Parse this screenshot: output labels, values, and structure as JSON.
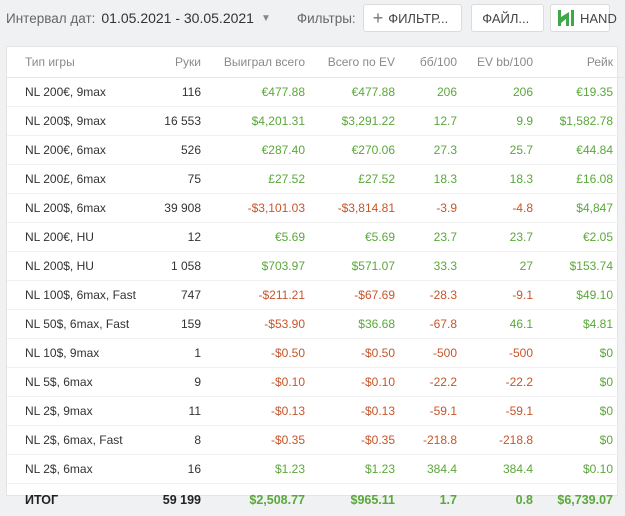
{
  "topbar": {
    "date_label": "Интервал дат:",
    "date_range": "01.05.2021 - 30.05.2021",
    "filters_label": "Фильтры:",
    "filter_button": "ФИЛЬТР...",
    "file_button": "ФАЙЛ...",
    "hand_button": "HAND"
  },
  "colors": {
    "positive": "#5aa83a",
    "negative": "#c8552b",
    "logo": "#3fa84a"
  },
  "table": {
    "headers": [
      "Тип игры",
      "Руки",
      "Выиграл всего",
      "Всего по EV",
      "бб/100",
      "EV bb/100",
      "Рейк"
    ],
    "rows": [
      {
        "game": "NL 200€, 9max",
        "hands": "116",
        "won": "€477.88",
        "ev": "€477.88",
        "bb": "206",
        "evbb": "206",
        "rake": "€19.35"
      },
      {
        "game": "NL 200$, 9max",
        "hands": "16 553",
        "won": "$4,201.31",
        "ev": "$3,291.22",
        "bb": "12.7",
        "evbb": "9.9",
        "rake": "$1,582.78"
      },
      {
        "game": "NL 200€, 6max",
        "hands": "526",
        "won": "€287.40",
        "ev": "€270.06",
        "bb": "27.3",
        "evbb": "25.7",
        "rake": "€44.84"
      },
      {
        "game": "NL 200£, 6max",
        "hands": "75",
        "won": "£27.52",
        "ev": "£27.52",
        "bb": "18.3",
        "evbb": "18.3",
        "rake": "£16.08"
      },
      {
        "game": "NL 200$, 6max",
        "hands": "39 908",
        "won": "-$3,101.03",
        "ev": "-$3,814.81",
        "bb": "-3.9",
        "evbb": "-4.8",
        "rake": "$4,847"
      },
      {
        "game": "NL 200€, HU",
        "hands": "12",
        "won": "€5.69",
        "ev": "€5.69",
        "bb": "23.7",
        "evbb": "23.7",
        "rake": "€2.05"
      },
      {
        "game": "NL 200$, HU",
        "hands": "1 058",
        "won": "$703.97",
        "ev": "$571.07",
        "bb": "33.3",
        "evbb": "27",
        "rake": "$153.74"
      },
      {
        "game": "NL 100$, 6max, Fast",
        "hands": "747",
        "won": "-$211.21",
        "ev": "-$67.69",
        "bb": "-28.3",
        "evbb": "-9.1",
        "rake": "$49.10"
      },
      {
        "game": "NL 50$, 6max, Fast",
        "hands": "159",
        "won": "-$53.90",
        "ev": "$36.68",
        "bb": "-67.8",
        "evbb": "46.1",
        "rake": "$4.81"
      },
      {
        "game": "NL 10$, 9max",
        "hands": "1",
        "won": "-$0.50",
        "ev": "-$0.50",
        "bb": "-500",
        "evbb": "-500",
        "rake": "$0"
      },
      {
        "game": "NL 5$, 6max",
        "hands": "9",
        "won": "-$0.10",
        "ev": "-$0.10",
        "bb": "-22.2",
        "evbb": "-22.2",
        "rake": "$0"
      },
      {
        "game": "NL 2$, 9max",
        "hands": "11",
        "won": "-$0.13",
        "ev": "-$0.13",
        "bb": "-59.1",
        "evbb": "-59.1",
        "rake": "$0"
      },
      {
        "game": "NL 2$, 6max, Fast",
        "hands": "8",
        "won": "-$0.35",
        "ev": "-$0.35",
        "bb": "-218.8",
        "evbb": "-218.8",
        "rake": "$0"
      },
      {
        "game": "NL 2$, 6max",
        "hands": "16",
        "won": "$1.23",
        "ev": "$1.23",
        "bb": "384.4",
        "evbb": "384.4",
        "rake": "$0.10"
      }
    ],
    "total": {
      "game": "ИТОГ",
      "hands": "59 199",
      "won": "$2,508.77",
      "ev": "$965.11",
      "bb": "1.7",
      "evbb": "0.8",
      "rake": "$6,739.07"
    }
  }
}
